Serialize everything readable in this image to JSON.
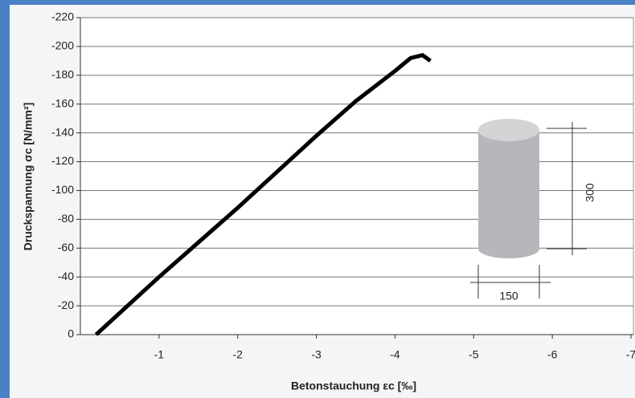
{
  "chart_data": {
    "type": "line",
    "xlabel": "Betonstauchung εc [‰]",
    "ylabel": "Druckspannung σc [N/mm²]",
    "x": [
      -0.2,
      -1,
      -2,
      -3,
      -3.5,
      -4,
      -4.2,
      -4.35,
      -4.45
    ],
    "values": [
      0,
      -40,
      -88,
      -138,
      -162,
      -183,
      -192,
      -194,
      -190
    ],
    "color": "#000000",
    "xlim": [
      0,
      -7
    ],
    "xticks": [
      -1,
      -2,
      -3,
      -4,
      -5,
      -6,
      -7
    ],
    "ylim": [
      0,
      -220
    ],
    "yticks": [
      0,
      -20,
      -40,
      -60,
      -80,
      -100,
      -120,
      -140,
      -160,
      -180,
      -200,
      -220
    ],
    "grid": true,
    "annotations": [
      "300",
      "150"
    ]
  }
}
